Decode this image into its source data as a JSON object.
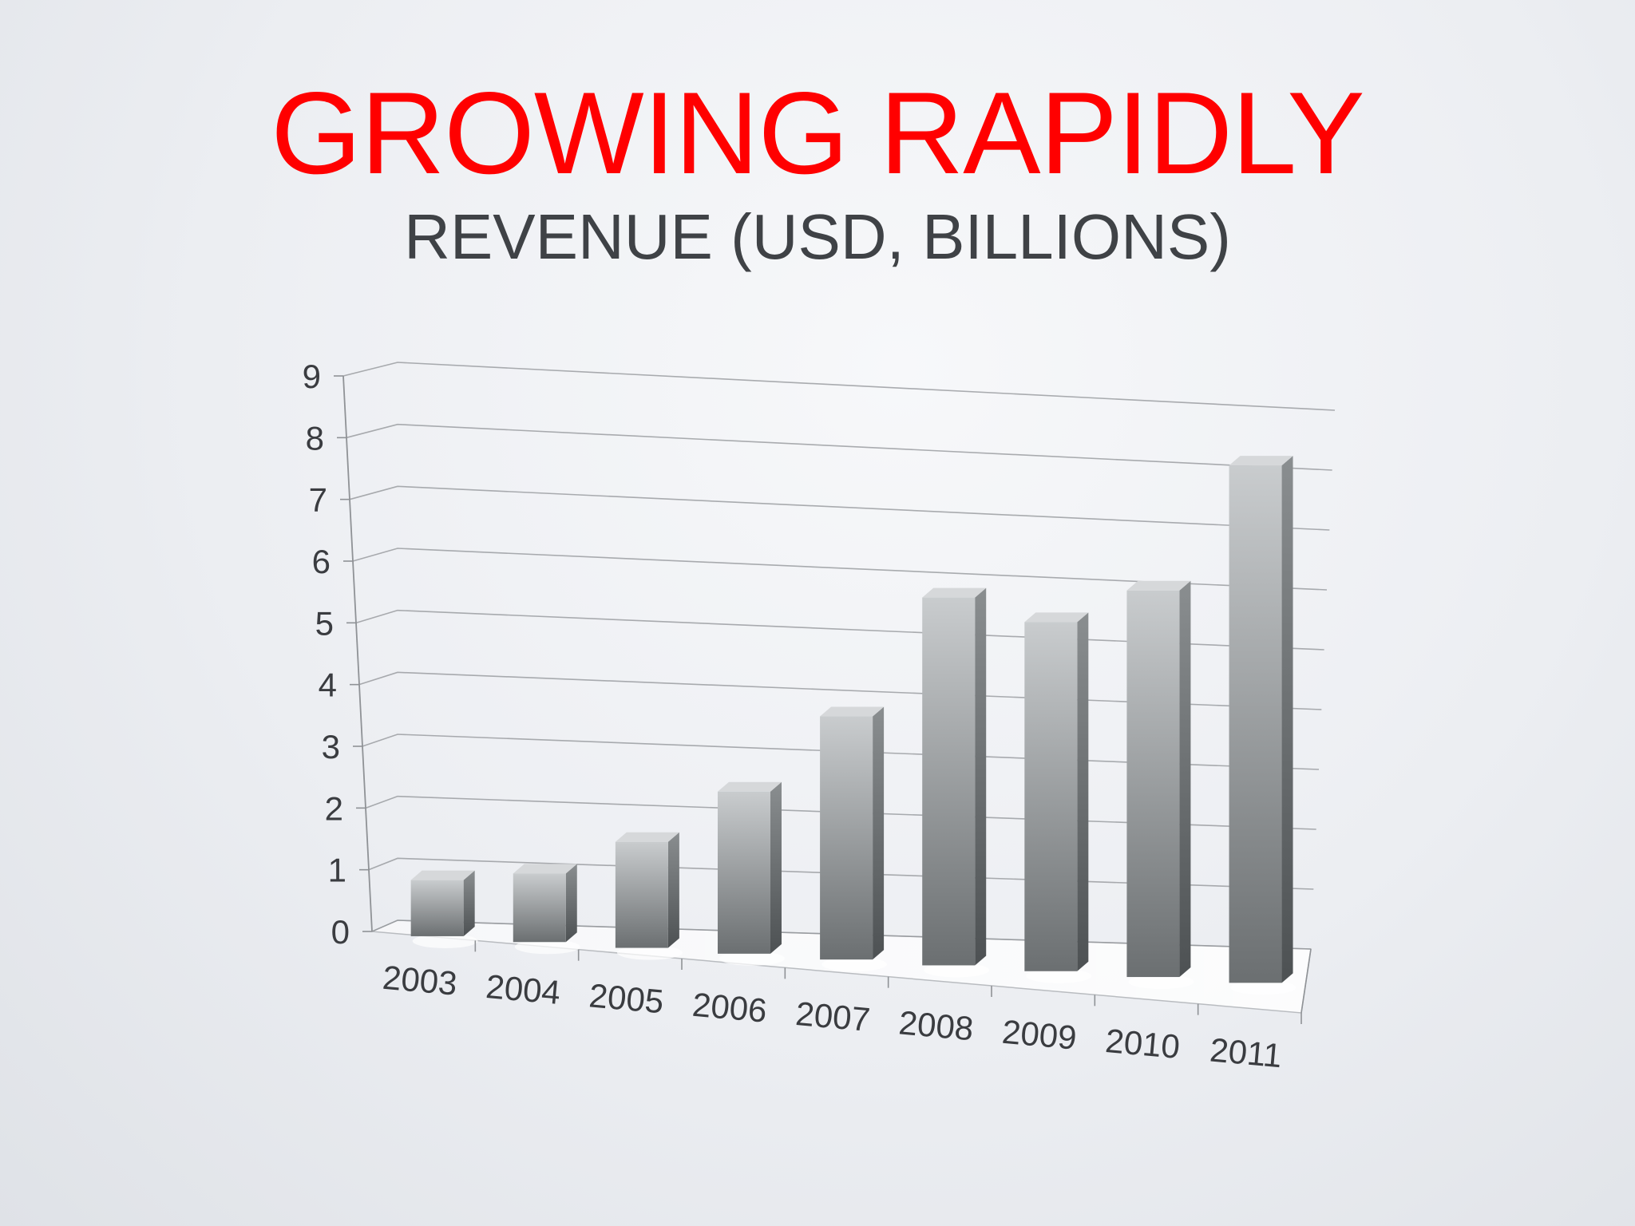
{
  "slide": {
    "title": "GROWING RAPIDLY",
    "subtitle": "REVENUE (USD, BILLIONS)"
  },
  "colors": {
    "title": "#ff0000",
    "subtitle": "#3f4246",
    "bar_light": "#c9ccce",
    "bar_dark": "#6b6f71",
    "grid": "#8f9296"
  },
  "chart_data": {
    "type": "bar",
    "style": "3d-column",
    "title": "",
    "xlabel": "",
    "ylabel": "",
    "categories": [
      "2003",
      "2004",
      "2005",
      "2006",
      "2007",
      "2008",
      "2009",
      "2010",
      "2011"
    ],
    "series": [
      {
        "values": [
          0.9,
          1.1,
          1.7,
          2.6,
          3.9,
          5.9,
          5.6,
          6.2,
          8.3
        ]
      }
    ],
    "ylim": [
      0,
      9
    ],
    "yticks": [
      "0",
      "1",
      "2",
      "3",
      "4",
      "5",
      "6",
      "7",
      "8",
      "9"
    ],
    "grid": true,
    "legend": "none"
  }
}
